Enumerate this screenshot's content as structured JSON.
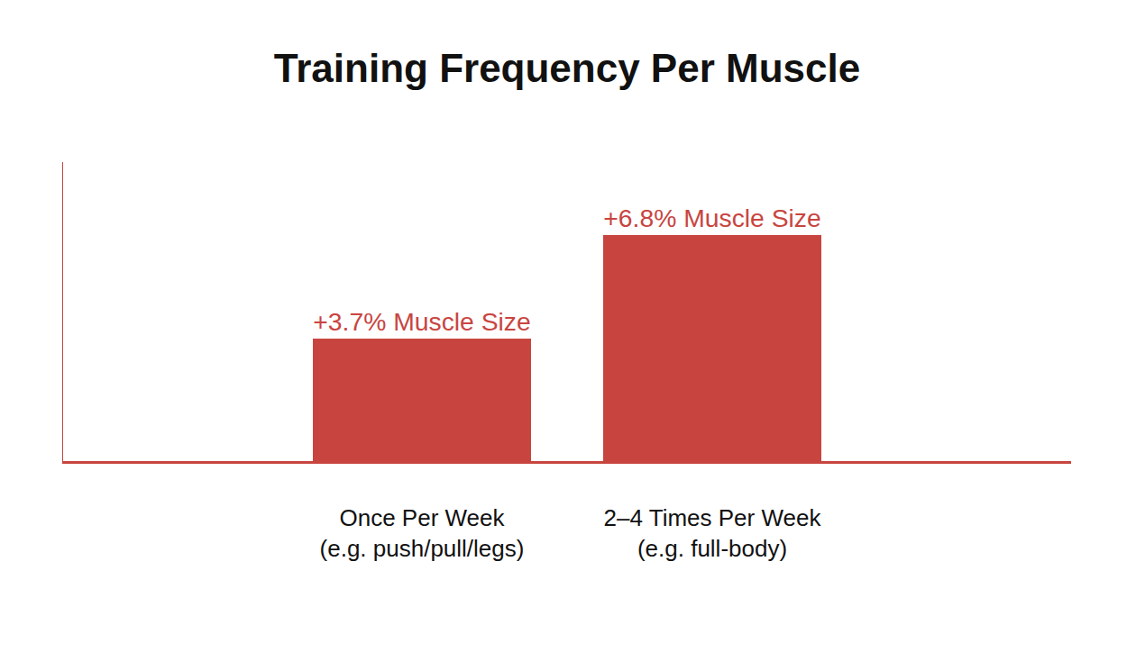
{
  "chart_data": {
    "type": "bar",
    "title": "Training Frequency Per Muscle",
    "categories": [
      "Once Per Week\n(e.g. push/pull/legs)",
      "2–4 Times Per Week\n(e.g. full-body)"
    ],
    "values": [
      3.7,
      6.8
    ],
    "value_labels": [
      "+3.7% Muscle Size",
      "+6.8% Muscle Size"
    ],
    "data_labels": true,
    "color": "#c8453f",
    "ylim": [
      0,
      9
    ],
    "yticks": [],
    "grid": false,
    "tick_labels": "x"
  }
}
